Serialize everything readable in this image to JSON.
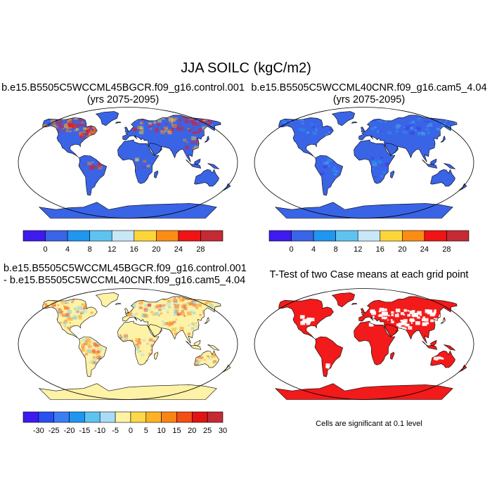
{
  "figure": {
    "title": "JJA SOILC (kgC/m2)"
  },
  "panels": [
    {
      "id": "case1",
      "title_lines": [
        "b.e15.B5505C5WCCML45BGCR.f09_g16.control.001",
        "(yrs 2075-2095)"
      ],
      "fill": "#3a64e6",
      "hotspots": "high"
    },
    {
      "id": "case2",
      "title_lines": [
        "b.e15.B5505C5WCCML40CNR.f09_g16.cam5_4.04",
        "(yrs 2075-2095)"
      ],
      "fill": "#3a64e6",
      "hotspots": "low"
    },
    {
      "id": "diff",
      "title_lines": [
        "b.e15.B5505C5WCCML45BGCR.f09_g16.control.001",
        "- b.e15.B5505C5WCCML40CNR.f09_g16.cam5_4.04"
      ],
      "fill": "#fdf2a5",
      "hotspots": "diff"
    },
    {
      "id": "ttest",
      "title_lines": [
        "T-Test of two Case means at each grid point"
      ],
      "fill": "#f21a1a",
      "hotspots": "sig"
    }
  ],
  "colorbars": {
    "abs": {
      "colors": [
        "#3f1aee",
        "#3a64e6",
        "#1f96f0",
        "#5ec3f0",
        "#c8e8f8",
        "#fcd638",
        "#fb8c14",
        "#f01414",
        "#c42a33"
      ],
      "labels": [
        "0",
        "4",
        "8",
        "12",
        "16",
        "20",
        "24",
        "28"
      ]
    },
    "diff": {
      "colors": [
        "#3f1aee",
        "#2850f0",
        "#3a7ef4",
        "#1f96f0",
        "#5ec3f0",
        "#a8dcf6",
        "#fdf2a5",
        "#fdd84a",
        "#fcb224",
        "#fb8514",
        "#f44d16",
        "#e01414",
        "#c42a33"
      ],
      "labels": [
        "-30",
        "-25",
        "-20",
        "-15",
        "-10",
        "-5",
        "0",
        "5",
        "10",
        "15",
        "20",
        "25",
        "30"
      ]
    }
  },
  "note": "Cells are significant at 0.1 level"
}
